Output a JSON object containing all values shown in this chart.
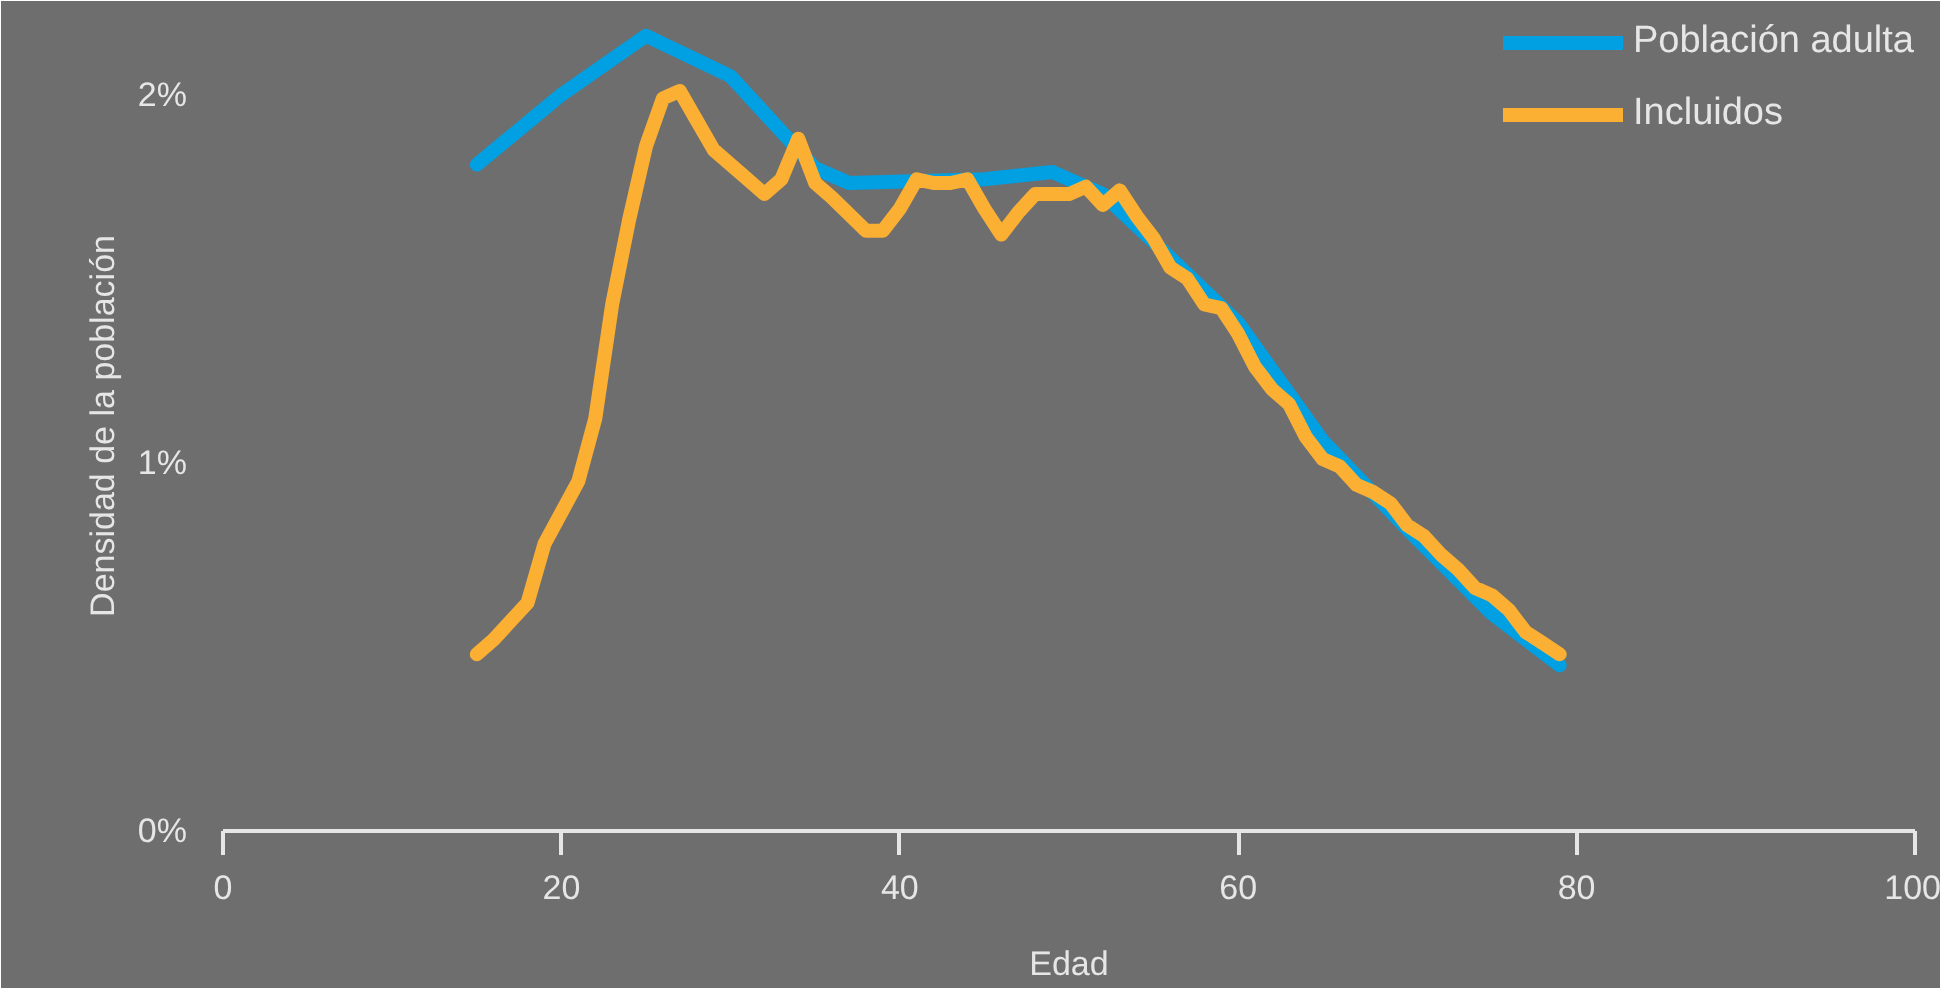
{
  "chart_data": {
    "type": "line",
    "xlabel": "Edad",
    "ylabel": "Densidad de la población",
    "xlim": [
      0,
      100
    ],
    "xticks": [
      0,
      20,
      40,
      60,
      80,
      100
    ],
    "ylim": [
      0,
      2.2
    ],
    "yticks": [
      {
        "value": 0,
        "label": "0%"
      },
      {
        "value": 1,
        "label": "1%"
      },
      {
        "value": 2,
        "label": "2%"
      }
    ],
    "grid": false,
    "legend": "top right",
    "marker": "none",
    "line_style": "solid",
    "series": [
      {
        "name": "Población adulta",
        "color": "#00a0e3",
        "x": [
          15,
          20,
          25,
          30,
          35,
          37,
          45,
          49,
          52,
          55,
          60,
          65,
          70,
          75,
          79
        ],
        "values": [
          1.81,
          2.0,
          2.16,
          2.05,
          1.8,
          1.76,
          1.77,
          1.79,
          1.73,
          1.6,
          1.38,
          1.06,
          0.82,
          0.59,
          0.45
        ]
      },
      {
        "name": "Incluidos",
        "color": "#fbb034",
        "x": [
          15,
          16,
          18,
          19,
          21,
          22,
          23,
          24,
          25,
          26,
          27,
          28,
          29,
          31,
          32,
          33,
          34,
          35,
          36,
          38,
          39,
          40,
          41,
          42,
          43,
          44,
          45,
          46,
          47,
          48,
          50,
          51,
          52,
          53,
          54,
          55,
          56,
          57,
          58,
          59,
          60,
          61,
          62,
          63,
          64,
          65,
          66,
          67,
          68,
          69,
          70,
          71,
          72,
          73,
          74,
          75,
          76,
          77,
          78,
          79
        ],
        "values": [
          0.48,
          0.52,
          0.62,
          0.78,
          0.95,
          1.12,
          1.43,
          1.66,
          1.86,
          1.99,
          2.01,
          1.93,
          1.85,
          1.77,
          1.73,
          1.77,
          1.88,
          1.76,
          1.72,
          1.63,
          1.63,
          1.69,
          1.77,
          1.76,
          1.76,
          1.77,
          1.69,
          1.62,
          1.68,
          1.73,
          1.73,
          1.75,
          1.7,
          1.74,
          1.67,
          1.61,
          1.53,
          1.5,
          1.43,
          1.42,
          1.35,
          1.26,
          1.2,
          1.16,
          1.07,
          1.01,
          0.99,
          0.94,
          0.92,
          0.89,
          0.83,
          0.8,
          0.75,
          0.71,
          0.66,
          0.64,
          0.6,
          0.54,
          0.51,
          0.48
        ]
      }
    ]
  }
}
